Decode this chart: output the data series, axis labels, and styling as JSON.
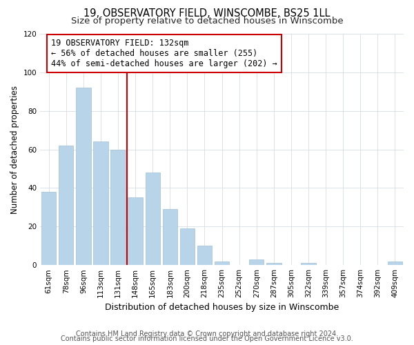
{
  "title": "19, OBSERVATORY FIELD, WINSCOMBE, BS25 1LL",
  "subtitle": "Size of property relative to detached houses in Winscombe",
  "bar_labels": [
    "61sqm",
    "78sqm",
    "96sqm",
    "113sqm",
    "131sqm",
    "148sqm",
    "165sqm",
    "183sqm",
    "200sqm",
    "218sqm",
    "235sqm",
    "252sqm",
    "270sqm",
    "287sqm",
    "305sqm",
    "322sqm",
    "339sqm",
    "357sqm",
    "374sqm",
    "392sqm",
    "409sqm"
  ],
  "bar_heights": [
    38,
    62,
    92,
    64,
    60,
    35,
    48,
    29,
    19,
    10,
    2,
    0,
    3,
    1,
    0,
    1,
    0,
    0,
    0,
    0,
    2
  ],
  "bar_color": "#b8d4e8",
  "bar_edge_color": "#a0c0d8",
  "vline_x_index": 4,
  "vline_color": "#cc0000",
  "xlabel": "Distribution of detached houses by size in Winscombe",
  "ylabel": "Number of detached properties",
  "ylim": [
    0,
    120
  ],
  "yticks": [
    0,
    20,
    40,
    60,
    80,
    100,
    120
  ],
  "annotation_title": "19 OBSERVATORY FIELD: 132sqm",
  "annotation_line1": "← 56% of detached houses are smaller (255)",
  "annotation_line2": "44% of semi-detached houses are larger (202) →",
  "annotation_box_color": "#ffffff",
  "annotation_box_edge": "#cc0000",
  "footer1": "Contains HM Land Registry data © Crown copyright and database right 2024.",
  "footer2": "Contains public sector information licensed under the Open Government Licence v3.0.",
  "title_fontsize": 10.5,
  "subtitle_fontsize": 9.5,
  "xlabel_fontsize": 9,
  "ylabel_fontsize": 8.5,
  "tick_fontsize": 7.5,
  "annotation_fontsize": 8.5,
  "footer_fontsize": 7
}
